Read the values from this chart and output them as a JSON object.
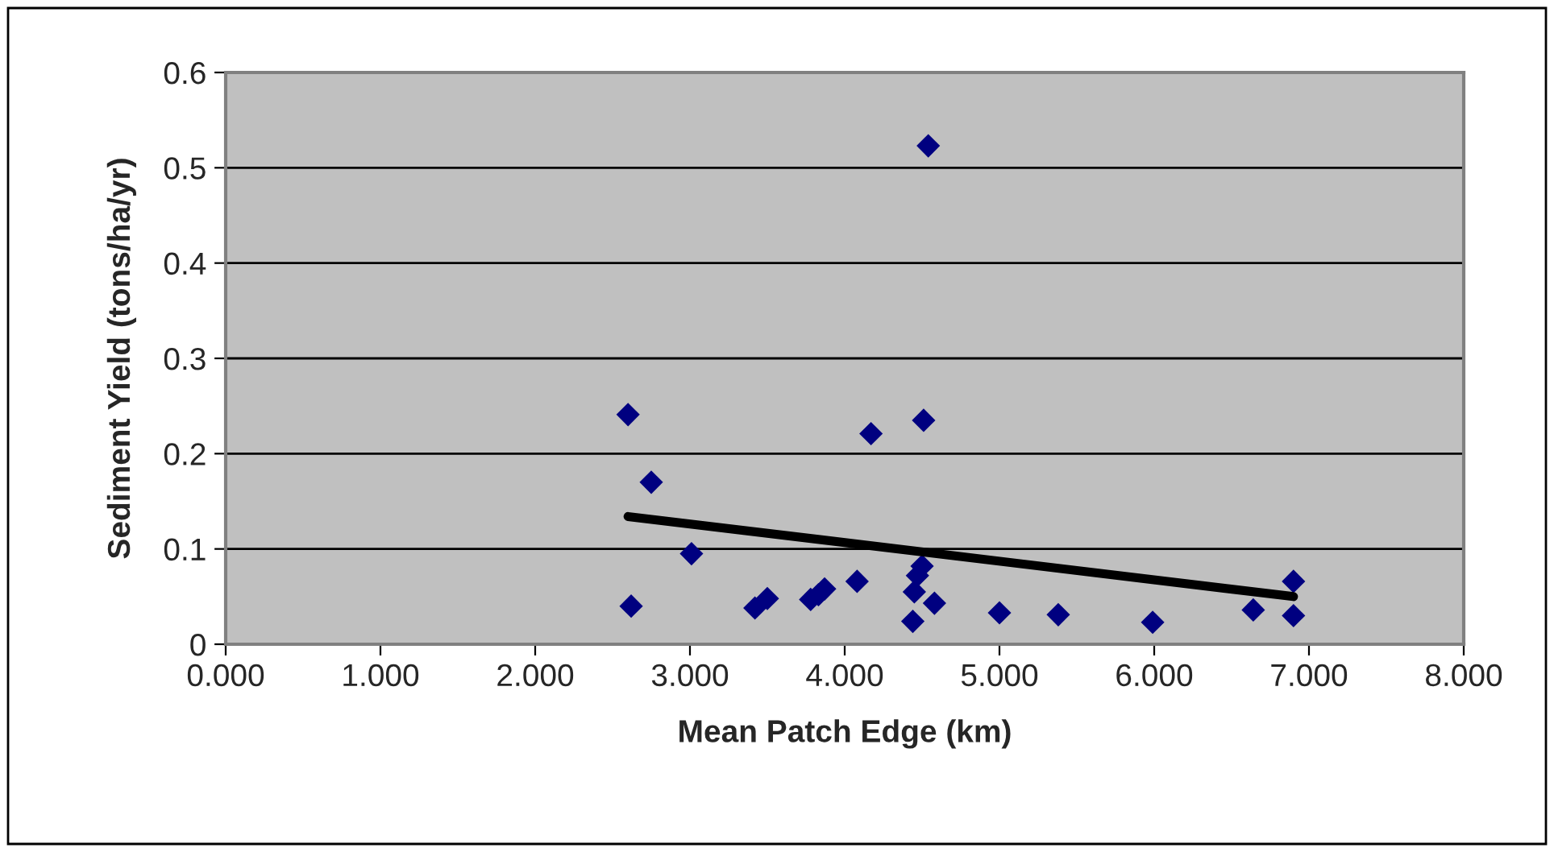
{
  "chart_data": {
    "type": "scatter",
    "xlabel": "Mean Patch Edge (km)",
    "ylabel": "Sediment Yield (tons/ha/yr)",
    "xlim": [
      0,
      8
    ],
    "ylim": [
      0,
      0.6
    ],
    "xticks": [
      {
        "value": 0,
        "label": "0.000"
      },
      {
        "value": 1,
        "label": "1.000"
      },
      {
        "value": 2,
        "label": "2.000"
      },
      {
        "value": 3,
        "label": "3.000"
      },
      {
        "value": 4,
        "label": "4.000"
      },
      {
        "value": 5,
        "label": "5.000"
      },
      {
        "value": 6,
        "label": "6.000"
      },
      {
        "value": 7,
        "label": "7.000"
      },
      {
        "value": 8,
        "label": "8.000"
      }
    ],
    "yticks": [
      0,
      0.1,
      0.2,
      0.3,
      0.4,
      0.5,
      0.6
    ],
    "grid": "y",
    "legend": false,
    "marker": "diamond",
    "series": [
      {
        "color": "#000080",
        "x": [
          2.6,
          2.62,
          2.75,
          3.01,
          3.42,
          3.47,
          3.5,
          3.78,
          3.83,
          3.87,
          4.08,
          4.17,
          4.44,
          4.45,
          4.47,
          4.5,
          4.51,
          4.54,
          4.58,
          5.0,
          5.38,
          5.99,
          6.64,
          6.9,
          6.9
        ],
        "values": [
          0.241,
          0.04,
          0.17,
          0.095,
          0.038,
          null,
          0.048,
          0.047,
          0.052,
          0.058,
          0.066,
          0.221,
          0.024,
          0.055,
          0.072,
          0.082,
          0.235,
          0.523,
          0.043,
          0.033,
          0.031,
          0.023,
          0.036,
          0.066,
          0.03
        ]
      },
      {
        "type": "line",
        "color": "#000000",
        "marker": "none",
        "x": [
          2.6,
          6.9
        ],
        "values": [
          0.134,
          0.05
        ]
      }
    ]
  }
}
